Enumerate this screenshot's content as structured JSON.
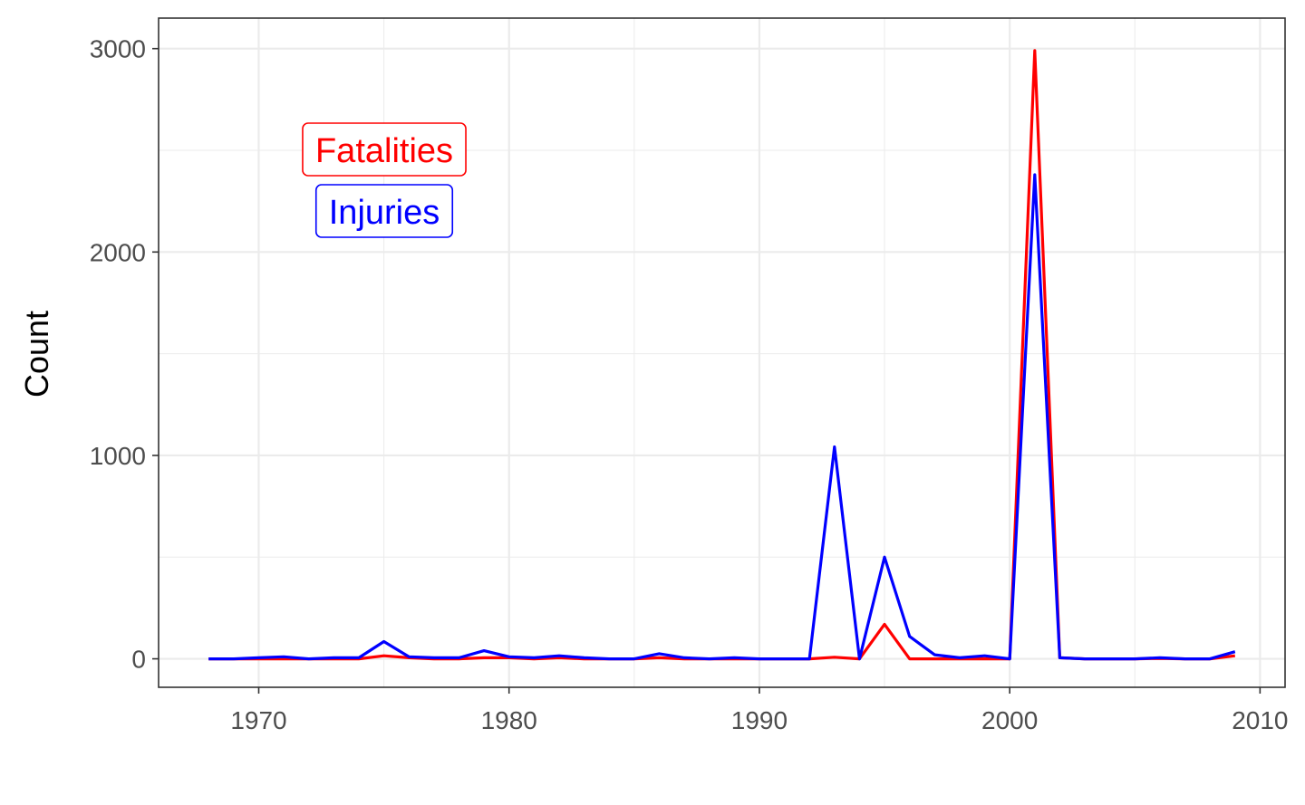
{
  "chart_data": {
    "type": "line",
    "title": "",
    "xlabel": "",
    "ylabel": "Count",
    "xlim": [
      1966,
      2011
    ],
    "ylim": [
      -140,
      3150
    ],
    "x_ticks": [
      "1970",
      "1980",
      "1990",
      "2000",
      "2010"
    ],
    "y_ticks": [
      "0",
      "1000",
      "2000",
      "3000"
    ],
    "grid": true,
    "legend_position": "top-left",
    "x": [
      1968,
      1969,
      1970,
      1971,
      1972,
      1973,
      1974,
      1975,
      1976,
      1977,
      1978,
      1979,
      1980,
      1981,
      1982,
      1983,
      1984,
      1985,
      1986,
      1987,
      1988,
      1989,
      1990,
      1991,
      1992,
      1993,
      1994,
      1995,
      1996,
      1997,
      1998,
      1999,
      2000,
      2001,
      2002,
      2003,
      2004,
      2005,
      2006,
      2007,
      2008,
      2009
    ],
    "series": [
      {
        "name": "Fatalities",
        "color": "#ff0000",
        "values": [
          0,
          0,
          0,
          0,
          0,
          0,
          0,
          15,
          5,
          0,
          0,
          5,
          5,
          0,
          5,
          0,
          0,
          0,
          5,
          0,
          0,
          0,
          0,
          0,
          0,
          8,
          0,
          170,
          0,
          0,
          0,
          0,
          0,
          2990,
          5,
          0,
          0,
          0,
          2,
          0,
          0,
          15
        ]
      },
      {
        "name": "Injuries",
        "color": "#0000ff",
        "values": [
          0,
          0,
          5,
          10,
          0,
          5,
          5,
          85,
          10,
          5,
          5,
          40,
          10,
          5,
          15,
          5,
          0,
          0,
          25,
          5,
          0,
          5,
          0,
          0,
          0,
          1042,
          0,
          500,
          110,
          20,
          5,
          15,
          0,
          2380,
          5,
          0,
          0,
          0,
          5,
          0,
          0,
          35
        ]
      }
    ]
  }
}
